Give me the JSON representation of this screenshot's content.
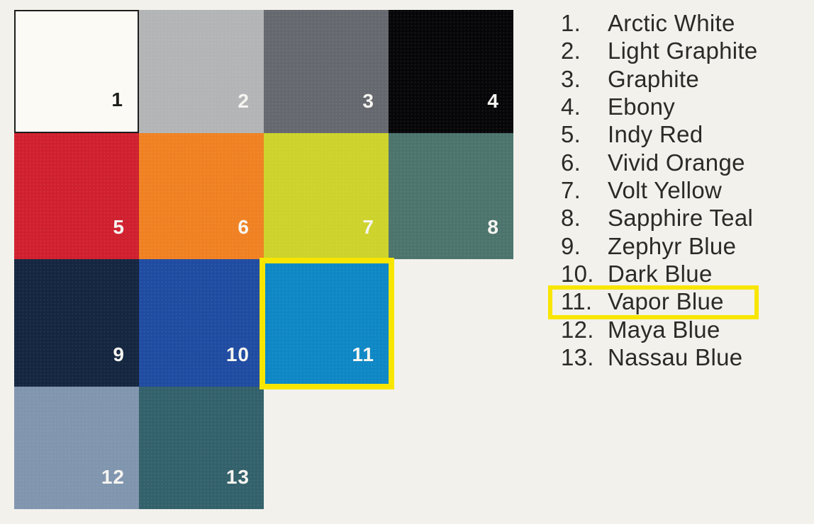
{
  "page": {
    "background": "#f2f1ec"
  },
  "palette": {
    "description": "Paint color swatch grid, 13 numbered swatches",
    "highlight": {
      "color": "#f8e600",
      "selected_number": "11",
      "selected_name": "Vapor Blue"
    },
    "swatches": [
      {
        "num": "1",
        "name": "Arctic White",
        "color": "#fbfaf5",
        "num_color": "#1d1d1b"
      },
      {
        "num": "2",
        "name": "Light Graphite",
        "color": "#b3b4b6",
        "num_color": "#f6f5f1"
      },
      {
        "num": "3",
        "name": "Graphite",
        "color": "#65686e",
        "num_color": "#f6f5f1"
      },
      {
        "num": "4",
        "name": "Ebony",
        "color": "#060608",
        "num_color": "#f6f5f1"
      },
      {
        "num": "5",
        "name": "Indy Red",
        "color": "#d0202f",
        "num_color": "#f6f5f1"
      },
      {
        "num": "6",
        "name": "Vivid Orange",
        "color": "#f08122",
        "num_color": "#f6f5f1"
      },
      {
        "num": "7",
        "name": "Volt Yellow",
        "color": "#cdd32b",
        "num_color": "#f6f5f1"
      },
      {
        "num": "8",
        "name": "Sapphire Teal",
        "color": "#4c746d",
        "num_color": "#f6f5f1"
      },
      {
        "num": "9",
        "name": "Zephyr Blue",
        "color": "#142640",
        "num_color": "#f6f5f1"
      },
      {
        "num": "10",
        "name": "Dark Blue",
        "color": "#1f4ba1",
        "num_color": "#f6f5f1"
      },
      {
        "num": "11",
        "name": "Vapor Blue",
        "color": "#0e87c5",
        "num_color": "#f6f5f1"
      },
      {
        "num": "12",
        "name": "Maya Blue",
        "color": "#8095ae",
        "num_color": "#f6f5f1"
      },
      {
        "num": "13",
        "name": "Nassau Blue",
        "color": "#33616b",
        "num_color": "#f6f5f1"
      }
    ]
  },
  "legend": {
    "items": [
      {
        "num": "1.",
        "label": "Arctic White"
      },
      {
        "num": "2.",
        "label": "Light Graphite"
      },
      {
        "num": "3.",
        "label": "Graphite"
      },
      {
        "num": "4.",
        "label": "Ebony"
      },
      {
        "num": "5.",
        "label": "Indy Red"
      },
      {
        "num": "6.",
        "label": "Vivid Orange"
      },
      {
        "num": "7.",
        "label": "Volt Yellow"
      },
      {
        "num": "8.",
        "label": "Sapphire Teal"
      },
      {
        "num": "9.",
        "label": "Zephyr Blue"
      },
      {
        "num": "10.",
        "label": "Dark Blue"
      },
      {
        "num": "11.",
        "label": "Vapor Blue"
      },
      {
        "num": "12.",
        "label": "Maya Blue"
      },
      {
        "num": "13.",
        "label": "Nassau Blue"
      }
    ]
  }
}
